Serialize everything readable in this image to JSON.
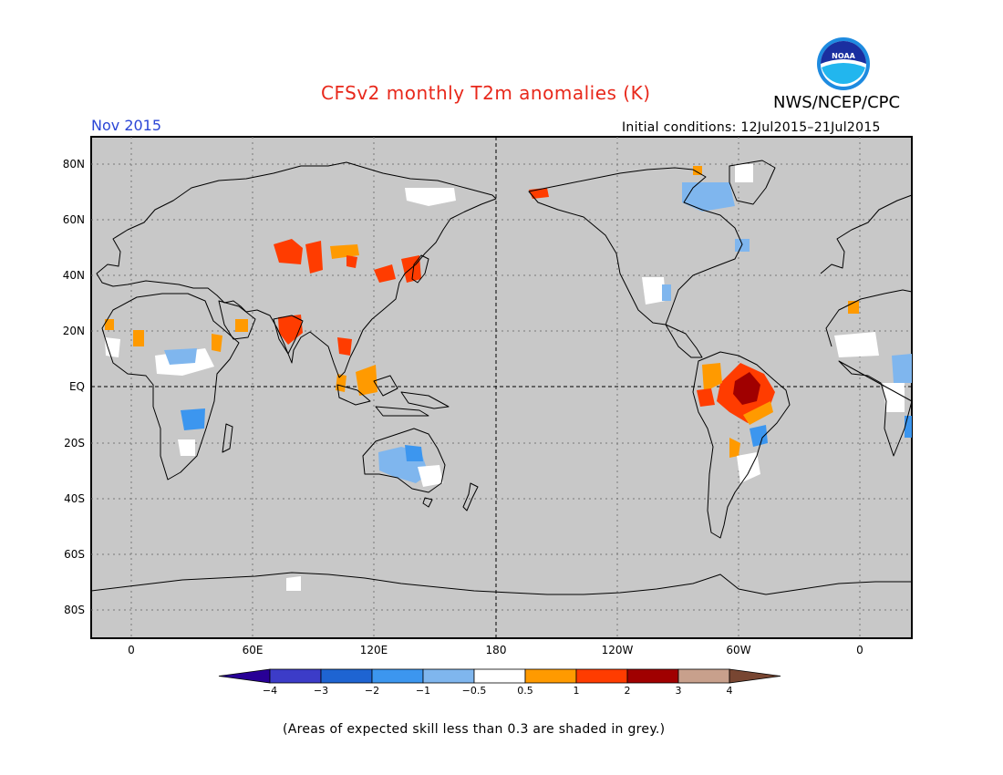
{
  "title": "CFSv2 monthly T2m anomalies (K)",
  "agency": "NWS/NCEP/CPC",
  "logo_text": "NOAA",
  "month": "Nov 2015",
  "initial_conditions": "Initial conditions: 12Jul2015–21Jul2015",
  "note": "(Areas of expected skill less than 0.3 are shaded in grey.)",
  "map": {
    "lat_labels": [
      "80N",
      "60N",
      "40N",
      "20N",
      "EQ",
      "20S",
      "40S",
      "60S",
      "80S"
    ],
    "lon_labels": [
      "0",
      "60E",
      "120E",
      "180",
      "120W",
      "60W",
      "0"
    ]
  },
  "colors": {
    "background_grey": "#c8c8c8",
    "white_band": "#ffffff",
    "cold1": "#7fb6ee",
    "cold2": "#3c96ef",
    "cold3": "#1e64d2",
    "cold4": "#3c3cc8",
    "cold5": "#280096",
    "warm1": "#ff9a00",
    "warm2": "#ff3c00",
    "warm3": "#a00000",
    "warm4": "#c8a08c",
    "warm5": "#784632"
  },
  "colorbar": {
    "labels": [
      "−4",
      "−3",
      "−2",
      "−1",
      "−0.5",
      "0.5",
      "1",
      "2",
      "3",
      "4"
    ],
    "colors": [
      "#3c3cc8",
      "#1e64d2",
      "#3c96ef",
      "#7fb6ee",
      "#ffffff",
      "#ff9a00",
      "#ff3c00",
      "#a00000",
      "#c8a08c"
    ],
    "under_color": "#280096",
    "over_color": "#784632"
  }
}
